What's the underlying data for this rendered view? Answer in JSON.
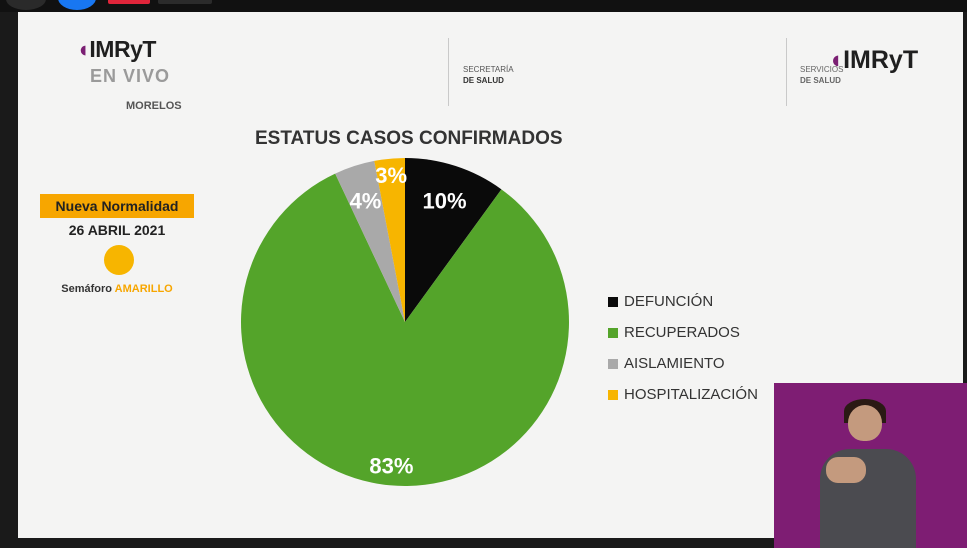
{
  "slide": {
    "logo_left": {
      "brand": "IMRyT",
      "line2": "EN VIVO",
      "line3": "MORELOS"
    },
    "secretaria": {
      "line1": "SECRETARÍA",
      "line2": "DE SALUD"
    },
    "servicios": {
      "line1": "SERVICIOS",
      "line2": "DE SALUD"
    },
    "logo_right": {
      "brand": "IMRyT"
    },
    "status": {
      "badge": "Nueva Normalidad",
      "date": "26 ABRIL 2021",
      "semaforo_label": "Semáforo",
      "semaforo_value": "AMARILLO",
      "semaforo_color": "#f7b500"
    }
  },
  "chart_data": {
    "type": "pie",
    "title": "ESTATUS CASOS CONFIRMADOS",
    "categories": [
      "DEFUNCIÓN",
      "RECUPERADOS",
      "AISLAMIENTO",
      "HOSPITALIZACIÓN"
    ],
    "values": [
      10,
      83,
      4,
      3
    ],
    "labels": [
      "10%",
      "83%",
      "4%",
      "3%"
    ],
    "colors": [
      "#0a0a0a",
      "#54a42a",
      "#a9a9a9",
      "#f7b500"
    ],
    "label_colors": [
      "#ffffff",
      "#ffffff",
      "#ffffff",
      "#ffffff"
    ],
    "legend_position": "right"
  },
  "colors": {
    "accent": "#f7a600",
    "brand": "#7b1f73",
    "background": "#f4f4f3"
  }
}
